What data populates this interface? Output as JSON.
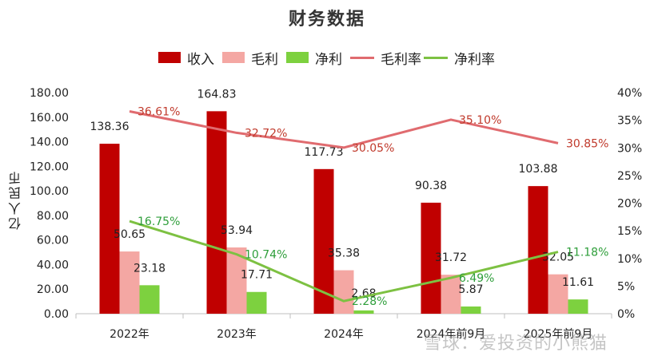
{
  "chart_data": {
    "type": "bar",
    "title": "财务数据",
    "ylabel": "亿人民币",
    "ylim": [
      0,
      180
    ],
    "y2lim": [
      0,
      40
    ],
    "y_ticks": [
      "0.00",
      "20.00",
      "40.00",
      "60.00",
      "80.00",
      "100.00",
      "120.00",
      "140.00",
      "160.00",
      "180.00"
    ],
    "y2_ticks": [
      "0%",
      "5%",
      "10%",
      "15%",
      "20%",
      "25%",
      "30%",
      "35%",
      "40%"
    ],
    "categories": [
      "2022年",
      "2023年",
      "2024年",
      "2024年前9月",
      "2025年前9月"
    ],
    "bar_series": [
      {
        "name": "收入",
        "color": "#c00000",
        "values": [
          138.36,
          164.83,
          117.73,
          90.38,
          103.88
        ],
        "labels": [
          "138.36",
          "164.83",
          "117.73",
          "90.38",
          "103.88"
        ]
      },
      {
        "name": "毛利",
        "color": "#f4a7a3",
        "values": [
          50.65,
          53.94,
          35.38,
          31.72,
          32.05
        ],
        "labels": [
          "50.65",
          "53.94",
          "35.38",
          "31.72",
          "32.05"
        ]
      },
      {
        "name": "净利",
        "color": "#7dd13f",
        "values": [
          23.18,
          17.71,
          2.68,
          5.87,
          11.61
        ],
        "labels": [
          "23.18",
          "17.71",
          "2.68",
          "5.87",
          "11.61"
        ]
      }
    ],
    "line_series": [
      {
        "name": "毛利率",
        "color": "#e06b6f",
        "values": [
          36.61,
          32.72,
          30.05,
          35.1,
          30.85
        ],
        "labels": [
          "36.61%",
          "32.72%",
          "30.05%",
          "35.10%",
          "30.85%"
        ]
      },
      {
        "name": "净利率",
        "color": "#7dc142",
        "values": [
          16.75,
          10.74,
          2.28,
          6.49,
          11.18
        ],
        "labels": [
          "16.75%",
          "10.74%",
          "2.28%",
          "6.49%",
          "11.18%"
        ]
      }
    ],
    "legend_position": "top"
  },
  "watermark": "雪球：爱投资的小熊猫"
}
